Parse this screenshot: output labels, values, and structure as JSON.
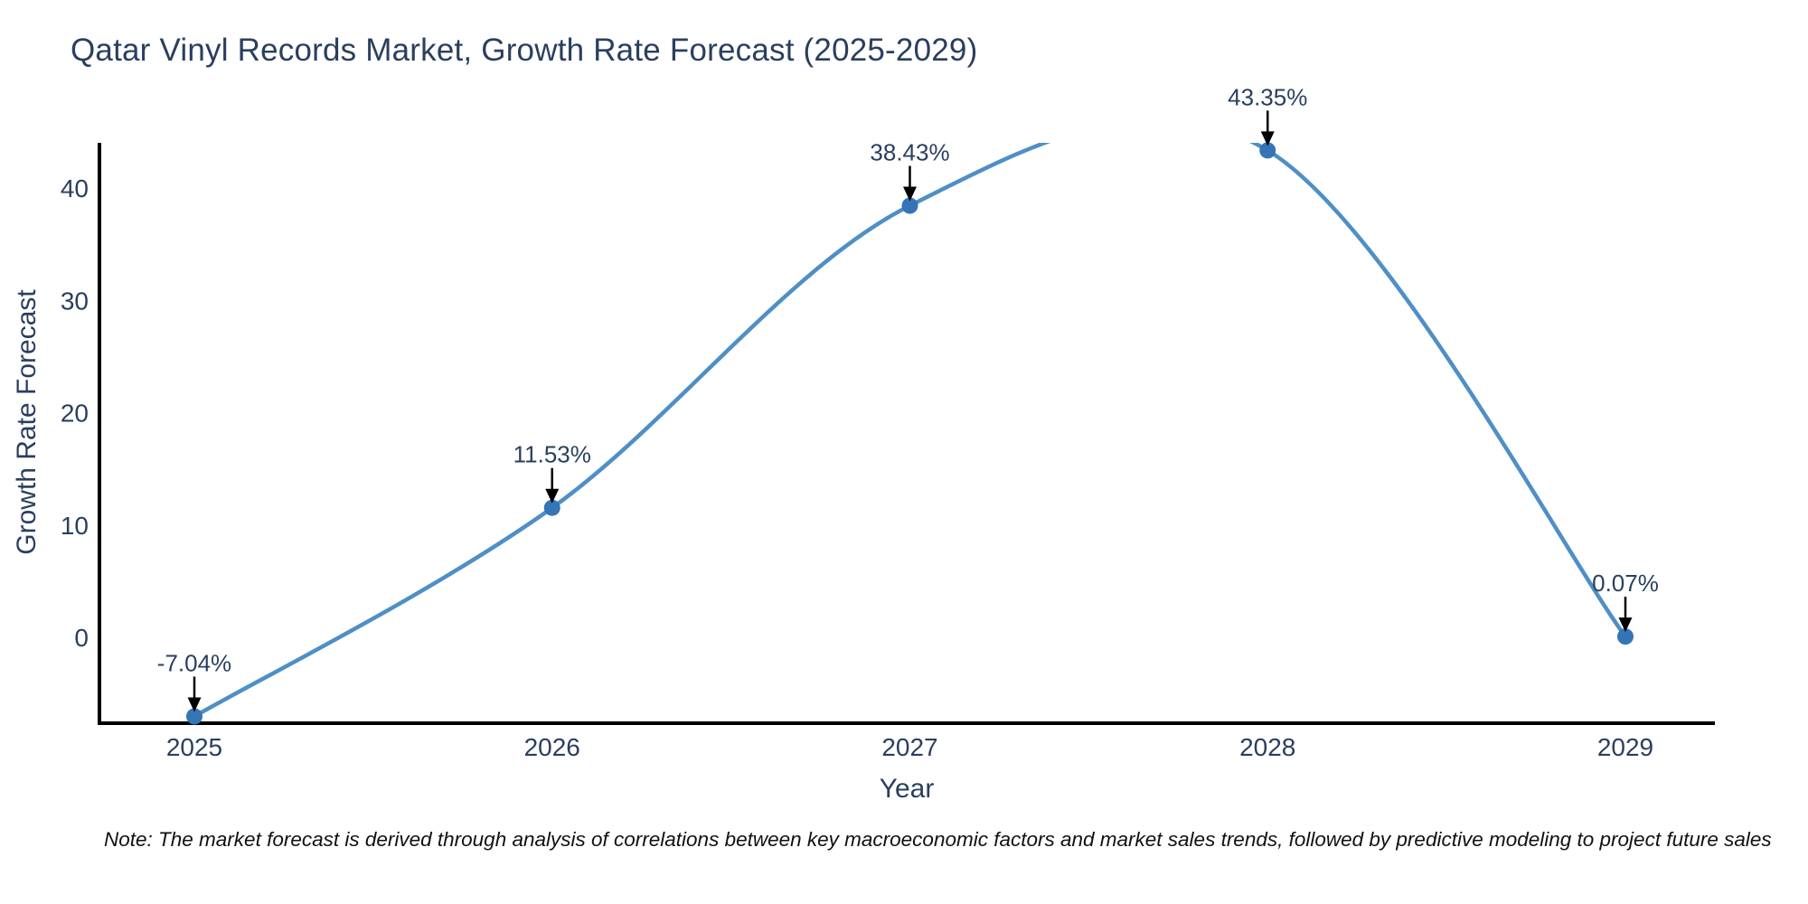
{
  "title": "Qatar Vinyl Records Market, Growth Rate Forecast (2025-2029)",
  "note": "Note: The market forecast is derived through analysis of correlations between key macroeconomic factors and market sales trends, followed by predictive modeling to project future sales",
  "chart_data": {
    "type": "line",
    "title": "Qatar Vinyl Records Market, Growth Rate Forecast (2025-2029)",
    "x": [
      2025,
      2026,
      2027,
      2028,
      2029
    ],
    "values": [
      -7.04,
      11.53,
      38.43,
      43.35,
      0.07
    ],
    "point_labels": [
      "-7.04%",
      "11.53%",
      "38.43%",
      "43.35%",
      "0.07%"
    ],
    "xlabel": "Year",
    "ylabel": "Growth Rate Forecast",
    "yticks": [
      0,
      10,
      20,
      30,
      40
    ],
    "ylim": [
      -7.7,
      44.1
    ],
    "line_shape": "spline",
    "grid": false,
    "legend": "none",
    "markers": true,
    "annotations_arrows": true,
    "colors": {
      "line": "#4e8fc6",
      "marker": "#3575b5",
      "arrow": "#000000",
      "text": "#2a3f5f",
      "axis": "#000000",
      "background": "#ffffff"
    }
  }
}
